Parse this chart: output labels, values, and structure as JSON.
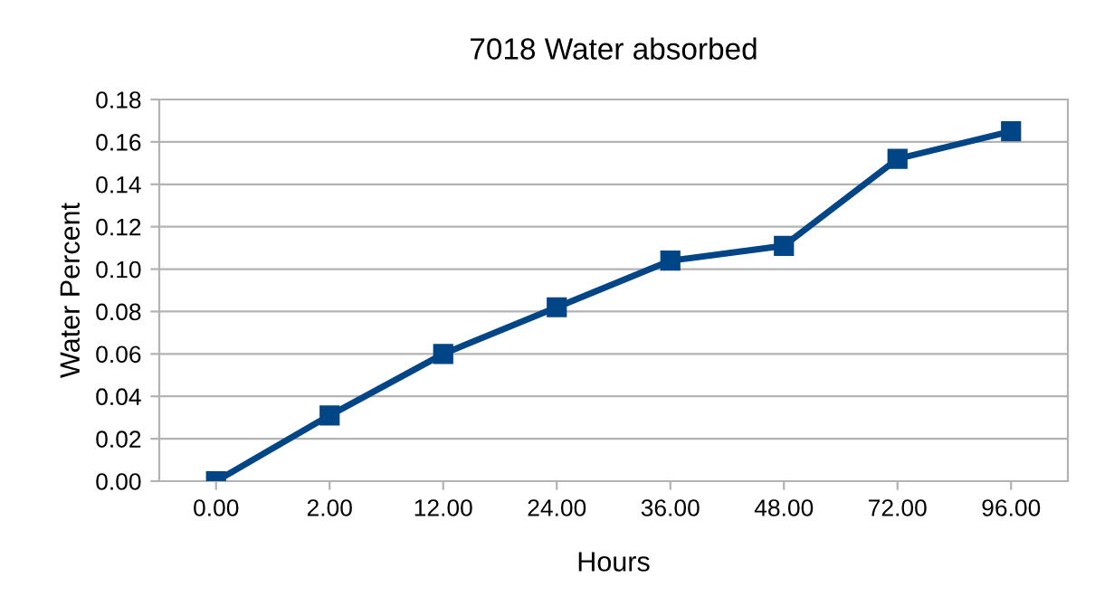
{
  "chart_data": {
    "type": "line",
    "title": "7018 Water absorbed",
    "xlabel": "Hours",
    "ylabel": "Water Percent",
    "categories": [
      "0.00",
      "2.00",
      "12.00",
      "24.00",
      "36.00",
      "48.00",
      "72.00",
      "96.00"
    ],
    "series": [
      {
        "color": "#004586",
        "values": [
          0,
          0.031,
          0.06,
          0.082,
          0.104,
          0.111,
          0.152,
          0.165
        ]
      }
    ],
    "ylim": [
      0,
      0.18
    ],
    "yticks": [
      {
        "value": 0,
        "label": "0.00"
      },
      {
        "value": 0.02,
        "label": "0.02"
      },
      {
        "value": 0.04,
        "label": "0.04"
      },
      {
        "value": 0.06,
        "label": "0.06"
      },
      {
        "value": 0.08,
        "label": "0.08"
      },
      {
        "value": 0.1,
        "label": "0.10"
      },
      {
        "value": 0.12,
        "label": "0.12"
      },
      {
        "value": 0.14,
        "label": "0.14"
      },
      {
        "value": 0.16,
        "label": "0.16"
      },
      {
        "value": 0.18,
        "label": "0.18"
      }
    ],
    "grid": "y",
    "marker": "square",
    "line_style": "solid"
  }
}
